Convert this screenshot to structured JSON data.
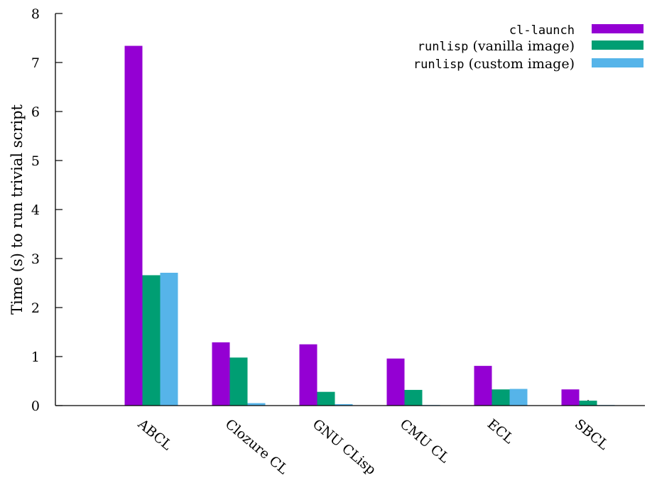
{
  "chart_data": {
    "type": "bar",
    "ylabel": "Time (s) to run trivial script",
    "xlabel": "",
    "ylim": [
      0,
      8
    ],
    "yticks": [
      0,
      1,
      2,
      3,
      4,
      5,
      6,
      7,
      8
    ],
    "legend_position": "top-right",
    "categories": [
      "ABCL",
      "Clozure CL",
      "GNU CLisp",
      "CMU CL",
      "ECL",
      "SBCL"
    ],
    "series": [
      {
        "name": "cl-launch",
        "name_code": "cl-launch",
        "name_rest": "",
        "color": "#9400d3",
        "values": [
          7.34,
          1.29,
          1.25,
          0.96,
          0.81,
          0.33
        ]
      },
      {
        "name": "runlisp (vanilla image)",
        "name_code": "runlisp",
        "name_rest": " (vanilla image)",
        "color": "#009e73",
        "values": [
          2.66,
          0.98,
          0.28,
          0.32,
          0.33,
          0.1
        ]
      },
      {
        "name": "runlisp (custom image)",
        "name_code": "runlisp",
        "name_rest": " (custom image)",
        "color": "#56b4e9",
        "values": [
          2.71,
          0.05,
          0.03,
          0.01,
          0.34,
          0.01
        ]
      }
    ]
  }
}
